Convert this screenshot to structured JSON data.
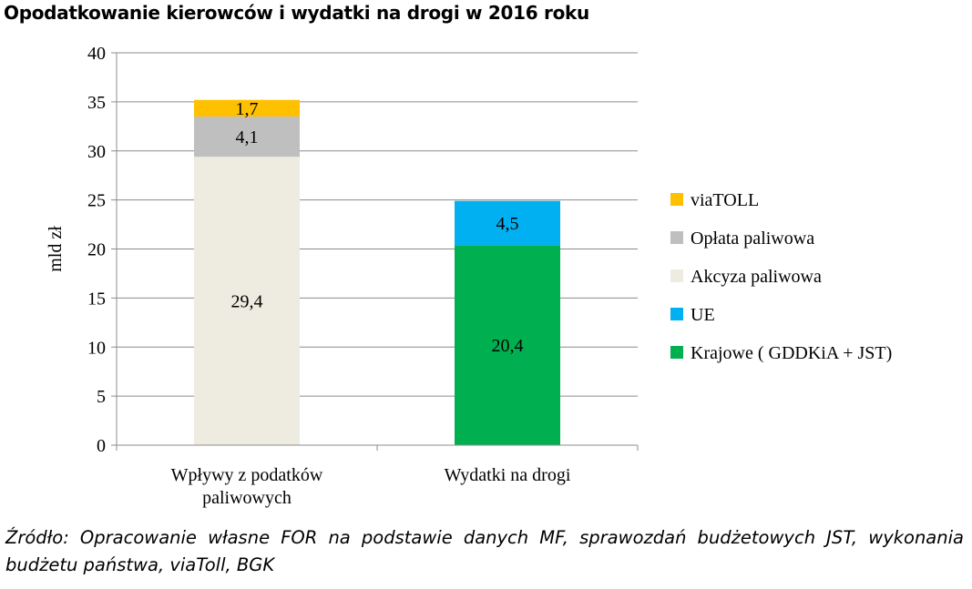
{
  "title": "Opodatkowanie kierowców  i wydatki na drogi w 2016 roku",
  "source": "Źródło: Opracowanie własne FOR na podstawie danych MF, sprawozdań budżetowych JST, wykonania budżetu państwa, viaToll, BGK",
  "chart_data": {
    "type": "bar",
    "stacked": true,
    "categories": [
      [
        "Wpływy z podatków",
        "paliwowych"
      ],
      [
        "Wydatki na drogi"
      ]
    ],
    "ylabel": "mld zł",
    "ylim": [
      0,
      40
    ],
    "yticks": [
      0,
      5,
      10,
      15,
      20,
      25,
      30,
      35,
      40
    ],
    "grid": true,
    "legend_position": "right",
    "series": [
      {
        "name": "Krajowe ( GDDKiA + JST)",
        "color": "#00b050",
        "values": [
          null,
          20.4
        ],
        "labels": [
          "",
          "20,4"
        ]
      },
      {
        "name": "UE",
        "color": "#00b0f0",
        "values": [
          null,
          4.5
        ],
        "labels": [
          "",
          "4,5"
        ]
      },
      {
        "name": "Akcyza paliwowa",
        "color": "#eeece1",
        "values": [
          29.4,
          null
        ],
        "labels": [
          "29,4",
          ""
        ]
      },
      {
        "name": "Opłata paliwowa",
        "color": "#bfbfbf",
        "values": [
          4.1,
          null
        ],
        "labels": [
          "4,1",
          ""
        ]
      },
      {
        "name": "viaTOLL",
        "color": "#ffc000",
        "values": [
          1.7,
          null
        ],
        "labels": [
          "1,7",
          ""
        ]
      }
    ],
    "legend_order": [
      "viaTOLL",
      "Opłata paliwowa",
      "Akcyza paliwowa",
      "UE",
      "Krajowe ( GDDKiA + JST)"
    ]
  }
}
